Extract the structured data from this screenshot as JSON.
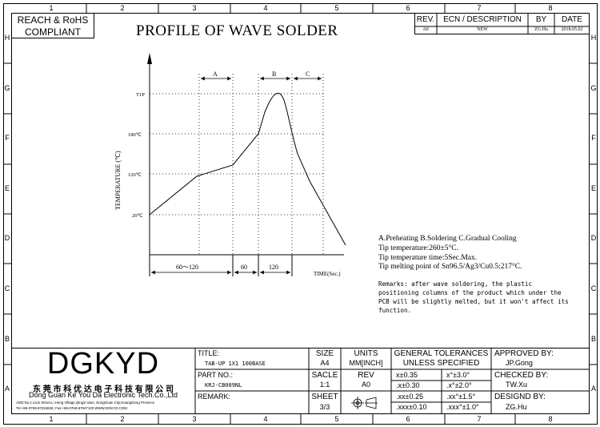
{
  "compliance": {
    "line1": "REACH & RoHS",
    "line2": "COMPLIANT"
  },
  "title": "PROFILE OF WAVE SOLDER",
  "revision_table": {
    "headers": {
      "rev": "REV.",
      "ecn": "ECN / DESCRIPTION",
      "by": "BY",
      "date": "DATE"
    },
    "row": {
      "rev": "A0",
      "ecn": "NEW",
      "by": "ZG.Hu",
      "date": "2018.05.02"
    }
  },
  "grid": {
    "columns": [
      "1",
      "2",
      "3",
      "4",
      "5",
      "6",
      "7",
      "8"
    ],
    "rows": [
      "H",
      "G",
      "F",
      "E",
      "D",
      "C",
      "B",
      "A"
    ]
  },
  "chart_data": {
    "type": "line",
    "ylabel": "TEMPERATURE (℃)",
    "xlabel": "TIME(Sec.)",
    "y_ticks": [
      "20℃",
      "120℃",
      "180℃",
      "T1P"
    ],
    "zones": [
      {
        "label": "A",
        "name": "Preheating"
      },
      {
        "label": "B",
        "name": "Soldering"
      },
      {
        "label": "C",
        "name": "Gradual Cooling"
      }
    ],
    "time_segments": [
      "60～120",
      "60",
      "120"
    ]
  },
  "notes": {
    "line1": "A.Preheating  B.Soldering  C.Gradual Cooling",
    "line2": "Tip temperature:260±5°C.",
    "line3": "Tip temperature time:5Sec.Max.",
    "line4": "Tip melting point of Sn96.5/Ag3/Cu0.5:217°C."
  },
  "remarks": {
    "line1": "Remarks: after wave soldering, the plastic",
    "line2": "positioning columns of the product  which under the",
    "line3": "PCB will be slightly melted, but it won't affect its",
    "line4": "function."
  },
  "company": {
    "logo": "DGKYD",
    "name_cn": "东 莞 市 科 优 达 电 子 科 技 有 限 公 司",
    "name_en": "Dong Guan Ke You Da Electronic Tech.Co.,Ltd",
    "address": "ADD:No.1 Lixin Street,Li Heng Village,Qingxi town, DongGuan City,GuangDong Province",
    "contact": "Tel:+86-0769-87334606;  Fax:+86-0769-87847129  WWW.DGKYD.COM"
  },
  "titleblock": {
    "title_label": "TITLE:",
    "title_value": "TAB-UP 1X1 100BASE",
    "part_label": "PART NO.:",
    "part_value": "KRJ-CB009NL",
    "remark_label": "REMARK:",
    "size_label": "SIZE",
    "size_value": "A4",
    "units_label": "UNITS",
    "units_value": "MM[INCH]",
    "scale_label": "SACLE",
    "scale_value": "1:1",
    "rev_label": "REV",
    "rev_value": "A0",
    "sheet_label": "SHEET",
    "sheet_value": "3/3",
    "tol_header1": "GENERAL TOLERANCES",
    "tol_header2": "UNLESS SPECIFIED",
    "tol": [
      {
        "lin": "x±0.35",
        "ang": "x°±3.0°"
      },
      {
        "lin": ".x±0.30",
        "ang": ".x°±2.0°"
      },
      {
        "lin": ".xx±0.25",
        "ang": ".xx°±1.5°"
      },
      {
        "lin": ".xxx±0.10",
        "ang": ".xxx°±1.0°"
      }
    ],
    "approved_label": "APPROVED BY:",
    "approved_value": "JP.Gong",
    "checked_label": "CHECKED BY:",
    "checked_value": "TW.Xu",
    "designed_label": "DESIGND BY:",
    "designed_value": "ZG.Hu"
  }
}
